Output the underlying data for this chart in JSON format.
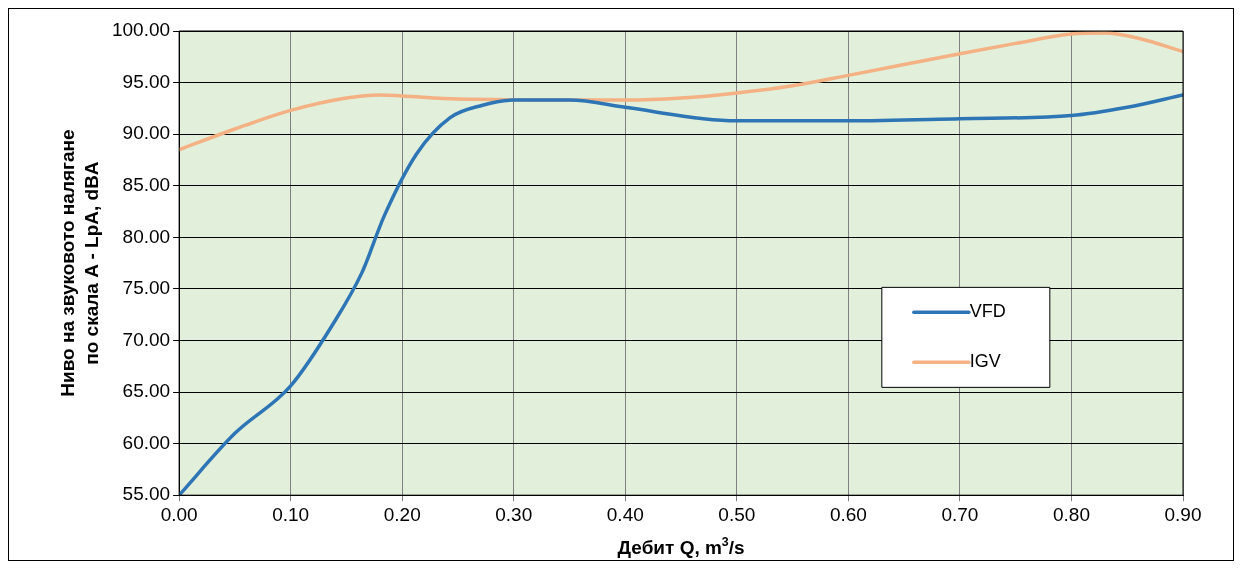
{
  "chart_data": {
    "type": "line",
    "xlabel": "Дебит Q, m$^{3}$/s",
    "ylabel": "Ниво на звуковото налягане по скала A - LpA, dBA",
    "xlim": [
      0,
      0.9
    ],
    "ylim": [
      55,
      100
    ],
    "xticks": [
      {
        "value": 0,
        "label": "0.00"
      },
      {
        "value": 0.1,
        "label": "0.10"
      },
      {
        "value": 0.2,
        "label": "0.20"
      },
      {
        "value": 0.3,
        "label": "0.30"
      },
      {
        "value": 0.4,
        "label": "0.40"
      },
      {
        "value": 0.5,
        "label": "0.50"
      },
      {
        "value": 0.6,
        "label": "0.60"
      },
      {
        "value": 0.7,
        "label": "0.70"
      },
      {
        "value": 0.8,
        "label": "0.80"
      },
      {
        "value": 0.9,
        "label": "0.90"
      }
    ],
    "yticks": [
      {
        "value": 55,
        "label": "55.00"
      },
      {
        "value": 60,
        "label": "60.00"
      },
      {
        "value": 65,
        "label": "65.00"
      },
      {
        "value": 70,
        "label": "70.00"
      },
      {
        "value": 75,
        "label": "75.00"
      },
      {
        "value": 80,
        "label": "80.00"
      },
      {
        "value": 85,
        "label": "85.00"
      },
      {
        "value": 90,
        "label": "90.00"
      },
      {
        "value": 95,
        "label": "95.00"
      },
      {
        "value": 100,
        "label": "100.00"
      }
    ],
    "grid": true,
    "legend": "right",
    "marker": "none",
    "line_style": "solid",
    "series": [
      {
        "name": "VFD",
        "color": "#2e75b6",
        "x": [
          0,
          0.05,
          0.1,
          0.138,
          0.164,
          0.184,
          0.213,
          0.243,
          0.272,
          0.3,
          0.35,
          0.4,
          0.47,
          0.5,
          0.6,
          0.7,
          0.8,
          0.85,
          0.9
        ],
        "values": [
          55,
          61,
          65.6,
          71.6,
          76.6,
          82.1,
          88.1,
          91.6,
          92.8,
          93.3,
          93.3,
          92.6,
          91.5,
          91.3,
          91.3,
          91.5,
          91.8,
          92.6,
          93.8
        ]
      },
      {
        "name": "IGV",
        "color": "#f4b183",
        "x": [
          0,
          0.05,
          0.1,
          0.15,
          0.18,
          0.2,
          0.25,
          0.4,
          0.45,
          0.5,
          0.55,
          0.6,
          0.7,
          0.75,
          0.8,
          0.83,
          0.86,
          0.9
        ],
        "values": [
          88.5,
          90.5,
          92.3,
          93.5,
          93.8,
          93.7,
          93.4,
          93.3,
          93.5,
          94,
          94.7,
          95.7,
          97.8,
          98.8,
          99.7,
          99.8,
          99.3,
          98
        ]
      }
    ]
  }
}
